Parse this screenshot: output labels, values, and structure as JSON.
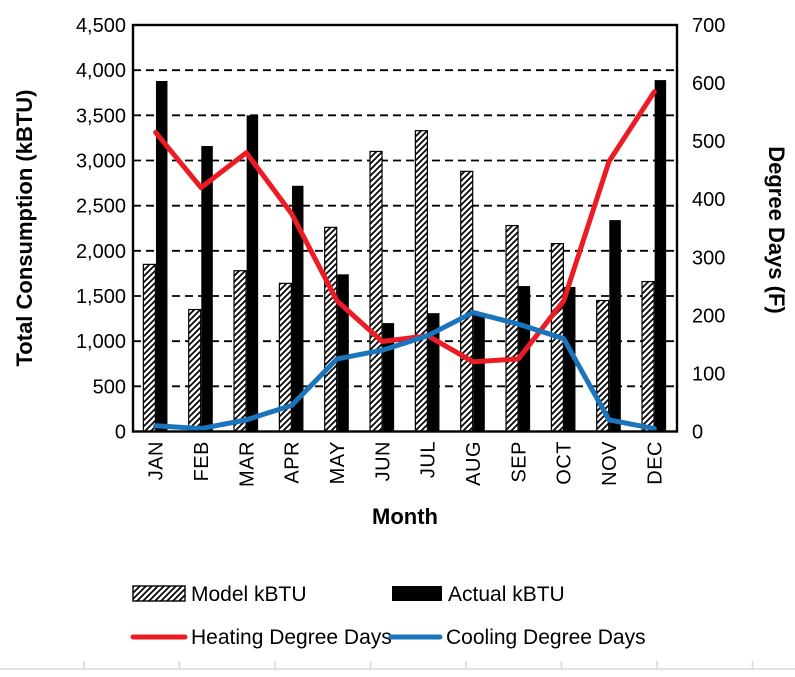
{
  "chart_data": {
    "type": "combo-bar-line",
    "categories": [
      "JAN",
      "FEB",
      "MAR",
      "APR",
      "MAY",
      "JUN",
      "JUL",
      "AUG",
      "SEP",
      "OCT",
      "NOV",
      "DEC"
    ],
    "series": [
      {
        "name": "Model kBTU",
        "type": "bar",
        "axis": "left",
        "style": "diagonal-hatch",
        "values": [
          1850,
          1350,
          1780,
          1640,
          2260,
          3100,
          3330,
          2880,
          2280,
          2080,
          1450,
          1660
        ]
      },
      {
        "name": "Actual kBTU",
        "type": "bar",
        "axis": "left",
        "style": "solid-black",
        "values": [
          3880,
          3160,
          3500,
          2720,
          1740,
          1200,
          1310,
          1310,
          1610,
          1600,
          2340,
          3890
        ]
      },
      {
        "name": "Heating Degree Days",
        "type": "line",
        "axis": "right",
        "color": "#ed1c24",
        "values": [
          515,
          420,
          480,
          375,
          225,
          155,
          165,
          120,
          125,
          225,
          465,
          585
        ]
      },
      {
        "name": "Cooling Degree Days",
        "type": "line",
        "axis": "right",
        "color": "#1b75bc",
        "values": [
          10,
          5,
          20,
          45,
          125,
          140,
          165,
          205,
          185,
          160,
          20,
          5
        ]
      }
    ],
    "left_axis": {
      "title": "Total Consumption (kBTU)",
      "min": 0,
      "max": 4500,
      "step": 500,
      "tick_format": "thousands-comma"
    },
    "right_axis": {
      "title": "Degree Days (F)",
      "min": 0,
      "max": 700,
      "step": 100
    },
    "x_axis": {
      "title": "Month",
      "label_rotation": -90
    },
    "gridlines": {
      "horizontal": "dashed",
      "color": "#000000"
    },
    "legend": {
      "position": "bottom"
    }
  },
  "colors": {
    "bar_actual": "#000000",
    "bar_model_hatch": "#000000",
    "heating_line": "#ed1c24",
    "cooling_line": "#1b75bc",
    "background": "#ffffff",
    "sheet_gridline": "#d9d9d9"
  }
}
